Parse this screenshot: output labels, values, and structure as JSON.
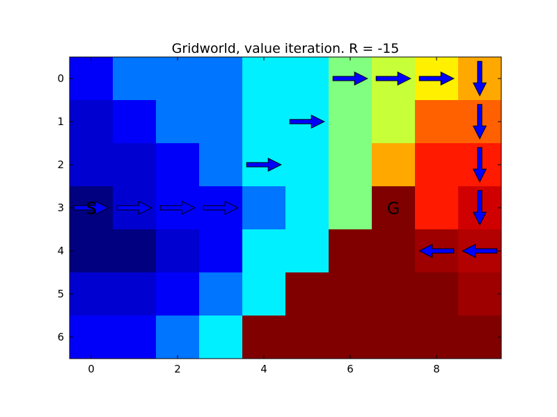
{
  "chart_data": {
    "type": "heatmap",
    "title": "Gridworld, value iteration. R = -15",
    "xlabel": "",
    "ylabel": "",
    "colormap": "jet",
    "x_ticks": [
      0,
      2,
      4,
      6,
      8
    ],
    "y_ticks": [
      0,
      1,
      2,
      3,
      4,
      5,
      6
    ],
    "xlim": [
      -0.5,
      9.5
    ],
    "ylim": [
      6.5,
      -0.5
    ],
    "grid": false,
    "value_scale": [
      0,
      1
    ],
    "values": [
      [
        0.12,
        0.24,
        0.24,
        0.24,
        0.36,
        0.36,
        0.5,
        0.57,
        0.64,
        0.71
      ],
      [
        0.08,
        0.12,
        0.24,
        0.24,
        0.36,
        0.36,
        0.5,
        0.57,
        0.78,
        0.78
      ],
      [
        0.08,
        0.08,
        0.12,
        0.24,
        0.36,
        0.36,
        0.5,
        0.71,
        0.85,
        0.85
      ],
      [
        0.0,
        0.08,
        0.12,
        0.12,
        0.24,
        0.36,
        0.5,
        1.0,
        0.85,
        0.92
      ],
      [
        0.0,
        0.0,
        0.08,
        0.12,
        0.36,
        0.36,
        1.0,
        1.0,
        0.97,
        0.95
      ],
      [
        0.08,
        0.08,
        0.12,
        0.24,
        0.36,
        1.0,
        1.0,
        1.0,
        1.0,
        0.97
      ],
      [
        0.12,
        0.12,
        0.24,
        0.36,
        1.0,
        1.0,
        1.0,
        1.0,
        1.0,
        1.0
      ]
    ],
    "arrows": [
      {
        "row": 0,
        "col": 6,
        "dir": "right",
        "fill": "#0000ff"
      },
      {
        "row": 0,
        "col": 7,
        "dir": "right",
        "fill": "#0000ff"
      },
      {
        "row": 0,
        "col": 8,
        "dir": "right",
        "fill": "#0000ff"
      },
      {
        "row": 0,
        "col": 9,
        "dir": "down",
        "fill": "#0000ff"
      },
      {
        "row": 1,
        "col": 5,
        "dir": "right",
        "fill": "#0000ff"
      },
      {
        "row": 1,
        "col": 9,
        "dir": "down",
        "fill": "#0000ff"
      },
      {
        "row": 2,
        "col": 4,
        "dir": "right",
        "fill": "#0000ff"
      },
      {
        "row": 2,
        "col": 9,
        "dir": "down",
        "fill": "#0000ff"
      },
      {
        "row": 3,
        "col": 0,
        "dir": "right",
        "fill": "#0000ff"
      },
      {
        "row": 3,
        "col": 1,
        "dir": "right",
        "fill": "#0000ff"
      },
      {
        "row": 3,
        "col": 2,
        "dir": "right",
        "fill": "#0000ff"
      },
      {
        "row": 3,
        "col": 3,
        "dir": "right",
        "fill": "#0000ff"
      },
      {
        "row": 3,
        "col": 9,
        "dir": "down",
        "fill": "#0000ff"
      },
      {
        "row": 4,
        "col": 8,
        "dir": "left",
        "fill": "#0000ff"
      },
      {
        "row": 4,
        "col": 9,
        "dir": "left",
        "fill": "#0000ff"
      }
    ],
    "cell_labels": [
      {
        "row": 3,
        "col": 0,
        "text": "S"
      },
      {
        "row": 3,
        "col": 7,
        "text": "G"
      }
    ]
  }
}
